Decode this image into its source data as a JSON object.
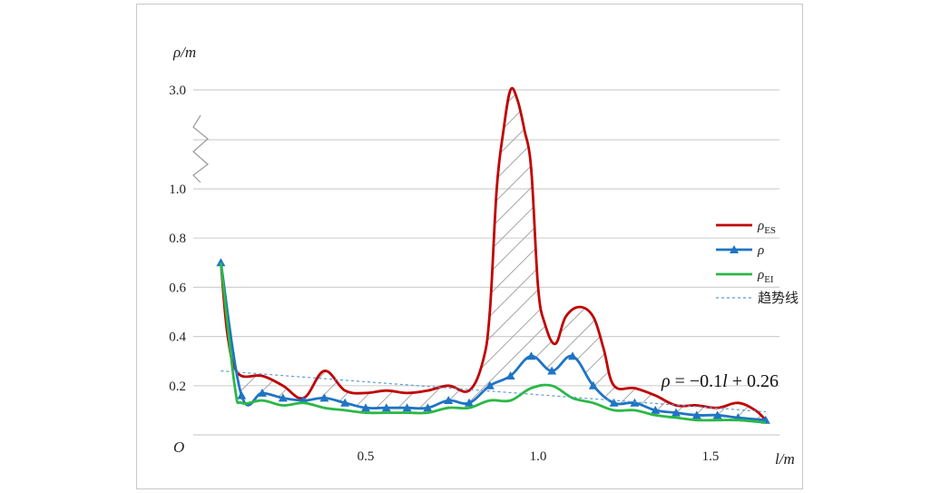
{
  "chart_data": {
    "type": "line",
    "title": "",
    "ylabel": "ρ/m",
    "xlabel": "l/m",
    "origin_label": "O",
    "xlim": [
      0.0,
      1.7
    ],
    "ylim": [
      0.0,
      3.0
    ],
    "y_break": {
      "from": 1.0,
      "to": 3.0
    },
    "x_ticks": [
      "0.5",
      "1.0",
      "1.5"
    ],
    "x_tick_values": [
      0.5,
      1.0,
      1.5
    ],
    "y_ticks": [
      "0.2",
      "0.4",
      "0.6",
      "0.8",
      "1.0",
      "3.0"
    ],
    "y_tick_values": [
      0.2,
      0.4,
      0.6,
      0.8,
      1.0,
      3.0
    ],
    "grid": true,
    "hatched_region": "between ρ_ES and ρ",
    "legend_position": "right",
    "series": [
      {
        "name": "ρES",
        "name_main": "ρ",
        "name_sub": "ES",
        "color": "#c00000",
        "marker": "none",
        "x": [
          0.08,
          0.1,
          0.13,
          0.2,
          0.26,
          0.32,
          0.38,
          0.44,
          0.5,
          0.56,
          0.62,
          0.68,
          0.74,
          0.8,
          0.84,
          0.86,
          0.88,
          0.9,
          0.92,
          0.94,
          0.96,
          0.98,
          1.0,
          1.02,
          1.05,
          1.08,
          1.12,
          1.16,
          1.19,
          1.22,
          1.28,
          1.34,
          1.4,
          1.46,
          1.52,
          1.58,
          1.63,
          1.66
        ],
        "values": [
          0.7,
          0.4,
          0.25,
          0.24,
          0.2,
          0.15,
          0.26,
          0.18,
          0.17,
          0.18,
          0.17,
          0.18,
          0.2,
          0.18,
          0.3,
          0.5,
          1.0,
          2.2,
          3.0,
          2.8,
          2.2,
          1.4,
          0.6,
          0.45,
          0.37,
          0.48,
          0.52,
          0.48,
          0.35,
          0.2,
          0.19,
          0.16,
          0.12,
          0.12,
          0.11,
          0.13,
          0.1,
          0.06
        ]
      },
      {
        "name": "ρ",
        "name_main": "ρ",
        "name_sub": "",
        "color": "#1f74c4",
        "marker": "triangle",
        "x": [
          0.08,
          0.14,
          0.2,
          0.26,
          0.32,
          0.38,
          0.44,
          0.5,
          0.56,
          0.62,
          0.68,
          0.74,
          0.8,
          0.86,
          0.92,
          0.98,
          1.04,
          1.1,
          1.16,
          1.22,
          1.28,
          1.34,
          1.4,
          1.46,
          1.52,
          1.58,
          1.66
        ],
        "values": [
          0.7,
          0.16,
          0.17,
          0.15,
          0.14,
          0.15,
          0.13,
          0.11,
          0.11,
          0.11,
          0.11,
          0.14,
          0.13,
          0.2,
          0.24,
          0.32,
          0.26,
          0.32,
          0.2,
          0.13,
          0.13,
          0.1,
          0.09,
          0.08,
          0.08,
          0.07,
          0.06
        ]
      },
      {
        "name": "ρEI",
        "name_main": "ρ",
        "name_sub": "EI",
        "color": "#2bb845",
        "marker": "none",
        "x": [
          0.08,
          0.12,
          0.14,
          0.2,
          0.26,
          0.32,
          0.38,
          0.44,
          0.5,
          0.56,
          0.62,
          0.68,
          0.74,
          0.8,
          0.86,
          0.92,
          0.98,
          1.04,
          1.1,
          1.16,
          1.22,
          1.28,
          1.34,
          1.4,
          1.46,
          1.52,
          1.58,
          1.66
        ],
        "values": [
          0.7,
          0.2,
          0.13,
          0.14,
          0.12,
          0.13,
          0.11,
          0.1,
          0.09,
          0.09,
          0.09,
          0.09,
          0.11,
          0.11,
          0.14,
          0.14,
          0.19,
          0.2,
          0.15,
          0.13,
          0.1,
          0.1,
          0.08,
          0.07,
          0.06,
          0.06,
          0.06,
          0.05
        ]
      },
      {
        "name": "趋势线",
        "name_main": "趋势线",
        "name_sub": "",
        "color": "#5b9bd5",
        "marker": "none",
        "dashed": true,
        "x": [
          0.08,
          1.66
        ],
        "values": [
          0.26,
          0.094
        ]
      }
    ],
    "annotation": {
      "rho": "ρ",
      "mid": " = −0.1",
      "l": "l",
      "tail": " + 0.26"
    }
  }
}
